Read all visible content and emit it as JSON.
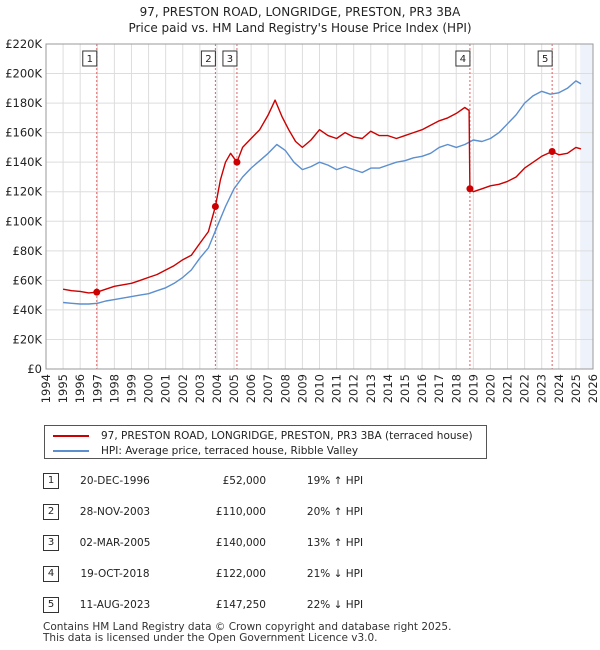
{
  "title_line1": "97, PRESTON ROAD, LONGRIDGE, PRESTON, PR3 3BA",
  "title_line2": "Price paid vs. HM Land Registry's House Price Index (HPI)",
  "colors": {
    "property": "#cc0000",
    "hpi": "#5b8fcf",
    "grid": "#dddddd",
    "vline": "#e06060",
    "shade": "#eef2fa"
  },
  "chart_data": {
    "type": "line",
    "title": "Price paid vs. HM Land Registry's House Price Index (HPI)",
    "xlabel": "",
    "ylabel": "",
    "xlim": [
      1994.0,
      2026.0
    ],
    "ylim": [
      0,
      220000
    ],
    "y_ticks": [
      0,
      20000,
      40000,
      60000,
      80000,
      100000,
      120000,
      140000,
      160000,
      180000,
      200000,
      220000
    ],
    "y_tick_labels": [
      "£0",
      "£20K",
      "£40K",
      "£60K",
      "£80K",
      "£100K",
      "£120K",
      "£140K",
      "£160K",
      "£180K",
      "£200K",
      "£220K"
    ],
    "x_ticks": [
      1994,
      1995,
      1996,
      1997,
      1998,
      1999,
      2000,
      2001,
      2002,
      2003,
      2004,
      2005,
      2006,
      2007,
      2008,
      2009,
      2010,
      2011,
      2012,
      2013,
      2014,
      2015,
      2016,
      2017,
      2018,
      2019,
      2020,
      2021,
      2022,
      2023,
      2024,
      2025,
      2026
    ],
    "x_tick_labels": [
      "1994",
      "1995",
      "1996",
      "1997",
      "1998",
      "1999",
      "2000",
      "2001",
      "2002",
      "2003",
      "2004",
      "2005",
      "2006",
      "2007",
      "2008",
      "2009",
      "2010",
      "2011",
      "2012",
      "2013",
      "2014",
      "2015",
      "2016",
      "2017",
      "2018",
      "2019",
      "2020",
      "2021",
      "2022",
      "2023",
      "2024",
      "2025",
      "2026"
    ],
    "shaded_range": [
      2025.25,
      2026.0
    ],
    "series": [
      {
        "name": "97, PRESTON ROAD, LONGRIDGE, PRESTON, PR3 3BA (terraced house)",
        "color": "#cc0000",
        "x": [
          1995.0,
          1995.5,
          1996.0,
          1996.5,
          1996.97,
          1997.5,
          1998.0,
          1998.5,
          1999.0,
          1999.5,
          2000.0,
          2000.5,
          2001.0,
          2001.5,
          2002.0,
          2002.5,
          2003.0,
          2003.5,
          2003.91,
          2004.2,
          2004.5,
          2004.8,
          2005.17,
          2005.5,
          2006.0,
          2006.5,
          2007.0,
          2007.4,
          2007.8,
          2008.2,
          2008.6,
          2009.0,
          2009.5,
          2010.0,
          2010.5,
          2011.0,
          2011.5,
          2012.0,
          2012.5,
          2013.0,
          2013.5,
          2014.0,
          2014.5,
          2015.0,
          2015.5,
          2016.0,
          2016.5,
          2017.0,
          2017.5,
          2018.0,
          2018.5,
          2018.75,
          2018.8,
          2019.0,
          2019.5,
          2020.0,
          2020.5,
          2021.0,
          2021.5,
          2022.0,
          2022.5,
          2023.0,
          2023.61,
          2024.0,
          2024.5,
          2025.0,
          2025.3
        ],
        "values": [
          54000,
          53000,
          52500,
          51500,
          52000,
          54000,
          56000,
          57000,
          58000,
          60000,
          62000,
          64000,
          67000,
          70000,
          74000,
          77000,
          85000,
          93000,
          110000,
          128000,
          140000,
          146000,
          140000,
          150000,
          156000,
          162000,
          172000,
          182000,
          171000,
          162000,
          154000,
          150000,
          155000,
          162000,
          158000,
          156000,
          160000,
          157000,
          156000,
          161000,
          158000,
          158000,
          156000,
          158000,
          160000,
          162000,
          165000,
          168000,
          170000,
          173000,
          177000,
          175000,
          122000,
          120000,
          122000,
          124000,
          125000,
          127000,
          130000,
          136000,
          140000,
          144000,
          147250,
          145000,
          146000,
          150000,
          149000
        ]
      },
      {
        "name": "HPI: Average price, terraced house, Ribble Valley",
        "color": "#5b8fcf",
        "x": [
          1995.0,
          1995.5,
          1996.0,
          1996.5,
          1997.0,
          1997.5,
          1998.0,
          1998.5,
          1999.0,
          1999.5,
          2000.0,
          2000.5,
          2001.0,
          2001.5,
          2002.0,
          2002.5,
          2003.0,
          2003.5,
          2004.0,
          2004.5,
          2005.0,
          2005.5,
          2006.0,
          2006.5,
          2007.0,
          2007.5,
          2008.0,
          2008.5,
          2009.0,
          2009.5,
          2010.0,
          2010.5,
          2011.0,
          2011.5,
          2012.0,
          2012.5,
          2013.0,
          2013.5,
          2014.0,
          2014.5,
          2015.0,
          2015.5,
          2016.0,
          2016.5,
          2017.0,
          2017.5,
          2018.0,
          2018.5,
          2019.0,
          2019.5,
          2020.0,
          2020.5,
          2021.0,
          2021.5,
          2022.0,
          2022.5,
          2023.0,
          2023.5,
          2024.0,
          2024.5,
          2025.0,
          2025.3
        ],
        "values": [
          45000,
          44500,
          44000,
          44000,
          44500,
          46000,
          47000,
          48000,
          49000,
          50000,
          51000,
          53000,
          55000,
          58000,
          62000,
          67000,
          75000,
          82000,
          96000,
          110000,
          122000,
          130000,
          136000,
          141000,
          146000,
          152000,
          148000,
          140000,
          135000,
          137000,
          140000,
          138000,
          135000,
          137000,
          135000,
          133000,
          136000,
          136000,
          138000,
          140000,
          141000,
          143000,
          144000,
          146000,
          150000,
          152000,
          150000,
          152000,
          155000,
          154000,
          156000,
          160000,
          166000,
          172000,
          180000,
          185000,
          188000,
          186000,
          187000,
          190000,
          195000,
          193000
        ]
      }
    ],
    "sale_points": [
      {
        "label": "1",
        "x": 1996.97,
        "value": 52000
      },
      {
        "label": "2",
        "x": 2003.91,
        "value": 110000
      },
      {
        "label": "3",
        "x": 2005.17,
        "value": 140000
      },
      {
        "label": "4",
        "x": 2018.8,
        "value": 122000
      },
      {
        "label": "5",
        "x": 2023.61,
        "value": 147250
      }
    ]
  },
  "legend": {
    "property_label": "97, PRESTON ROAD, LONGRIDGE, PRESTON, PR3 3BA (terraced house)",
    "hpi_label": "HPI: Average price, terraced house, Ribble Valley"
  },
  "sales": [
    {
      "num": "1",
      "date": "20-DEC-1996",
      "price": "£52,000",
      "hpi": "19% ↑ HPI"
    },
    {
      "num": "2",
      "date": "28-NOV-2003",
      "price": "£110,000",
      "hpi": "20% ↑ HPI"
    },
    {
      "num": "3",
      "date": "02-MAR-2005",
      "price": "£140,000",
      "hpi": "13% ↑ HPI"
    },
    {
      "num": "4",
      "date": "19-OCT-2018",
      "price": "£122,000",
      "hpi": "21% ↓ HPI"
    },
    {
      "num": "5",
      "date": "11-AUG-2023",
      "price": "£147,250",
      "hpi": "22% ↓ HPI"
    }
  ],
  "footer_line1": "Contains HM Land Registry data © Crown copyright and database right 2025.",
  "footer_line2": "This data is licensed under the Open Government Licence v3.0."
}
